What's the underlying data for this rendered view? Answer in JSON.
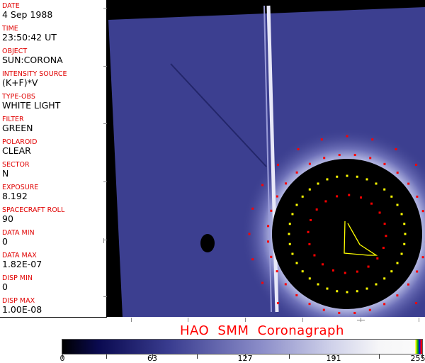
{
  "header_fields": [
    {
      "label": "DATE",
      "value": "4 Sep 1988"
    },
    {
      "label": "TIME",
      "value": "23:50:42 UT"
    },
    {
      "label": "OBJECT",
      "value": "SUN:CORONA"
    },
    {
      "label": "INTENSITY SOURCE",
      "value": "(K+F)*V"
    },
    {
      "label": "TYPE-OBS",
      "value": "WHITE LIGHT"
    },
    {
      "label": "FILTER",
      "value": "GREEN"
    },
    {
      "label": "POLAROID",
      "value": "CLEAR"
    },
    {
      "label": "SECTOR",
      "value": "N"
    },
    {
      "label": "EXPOSURE",
      "value": "8.192"
    },
    {
      "label": "SPACECRAFT ROLL",
      "value": "90"
    },
    {
      "label": "DATA MIN",
      "value": "0"
    },
    {
      "label": "DATA MAX",
      "value": "1.82E-07"
    },
    {
      "label": "DISP MIN",
      "value": "0"
    },
    {
      "label": "DISP MAX",
      "value": "1.00E-08"
    }
  ],
  "title": "HAO  SMM Coronagraph",
  "colorbar": {
    "labels": [
      "0",
      "63",
      "127",
      "191",
      "255"
    ],
    "colors": {
      "low": "#000000",
      "mid": "#3a3d90",
      "high": "#fafafa",
      "overlay": [
        "#ffff00",
        "#00aa00",
        "#0000ff",
        "#ff0000"
      ]
    }
  },
  "overlay_colors": {
    "red": "#ff0000",
    "yellow": "#ffff00"
  }
}
